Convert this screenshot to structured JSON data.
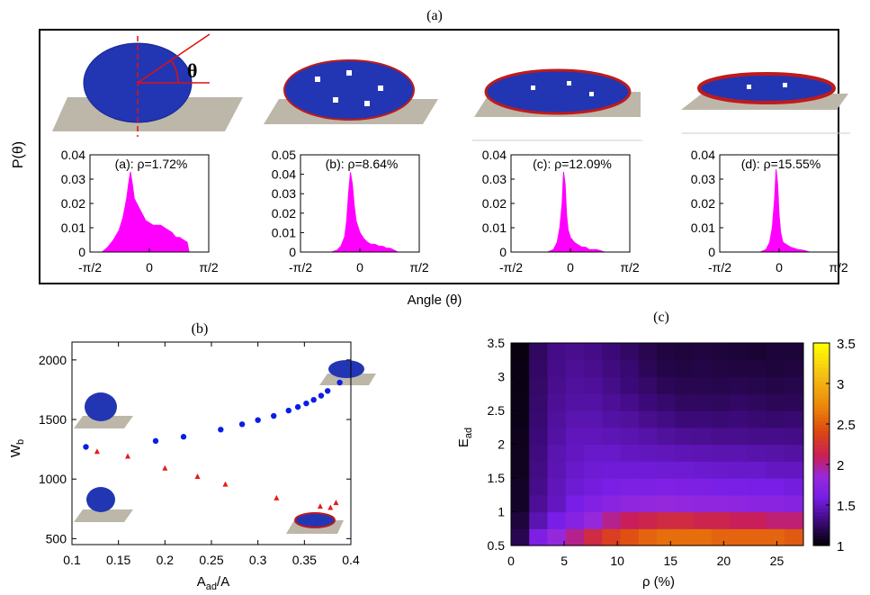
{
  "figure": {
    "panel_a_label": "(a)",
    "panel_b_label": "(b)",
    "panel_c_label": "(c)"
  },
  "panel_a": {
    "ylabel": "P(θ)",
    "xlabel": "Angle (θ)",
    "angle_symbol": "θ",
    "x_ticks": [
      "-π/2",
      "0",
      "π/2"
    ],
    "cell_colors": {
      "droplet": "#2236b4",
      "patch": "#d41f1f",
      "substrate": "#bdb7a9"
    }
  },
  "panel_b": {
    "ylabel": "W",
    "ylabel_sub": "b",
    "xlabel": "A",
    "xlabel_sub": "ad",
    "xlabel_tail": "/A"
  },
  "panel_c": {
    "ylabel": "E",
    "ylabel_sub": "ad",
    "xlabel": "ρ (%)"
  },
  "chart_data": [
    {
      "type": "area",
      "panel": "(a)",
      "label": "(a): ρ=1.72%",
      "xlim": [
        "-π/2",
        "π/2"
      ],
      "ylim": [
        0,
        0.04
      ],
      "y_ticks": [
        "0",
        "0.01",
        "0.02",
        "0.03",
        "0.04"
      ],
      "color": "#ff00ff",
      "series": [
        {
          "x": [
            -1.25,
            -1.1,
            -0.95,
            -0.8,
            -0.7,
            -0.6,
            -0.55,
            -0.5,
            -0.45,
            -0.4,
            -0.3,
            -0.2,
            -0.1,
            0,
            0.1,
            0.2,
            0.3,
            0.4,
            0.5,
            0.6,
            0.7,
            0.8,
            0.9,
            1.0,
            1.05
          ],
          "y": [
            0,
            0.002,
            0.005,
            0.009,
            0.014,
            0.022,
            0.028,
            0.033,
            0.028,
            0.022,
            0.019,
            0.016,
            0.013,
            0.012,
            0.011,
            0.011,
            0.011,
            0.01,
            0.009,
            0.008,
            0.006,
            0.006,
            0.005,
            0.004,
            0
          ]
        }
      ]
    },
    {
      "type": "area",
      "panel": "(b)",
      "label": "(b): ρ=8.64%",
      "xlim": [
        "-π/2",
        "π/2"
      ],
      "ylim": [
        0,
        0.05
      ],
      "y_ticks": [
        "0",
        "0.01",
        "0.02",
        "0.03",
        "0.04",
        "0.05"
      ],
      "color": "#ff00ff",
      "series": [
        {
          "x": [
            -0.75,
            -0.6,
            -0.5,
            -0.4,
            -0.35,
            -0.3,
            -0.25,
            -0.2,
            -0.15,
            -0.1,
            0,
            0.1,
            0.2,
            0.3,
            0.4,
            0.5,
            0.6,
            0.7,
            0.8,
            0.9,
            1.0
          ],
          "y": [
            0,
            0.001,
            0.003,
            0.008,
            0.016,
            0.03,
            0.041,
            0.035,
            0.024,
            0.016,
            0.01,
            0.007,
            0.005,
            0.004,
            0.004,
            0.003,
            0.003,
            0.002,
            0.002,
            0.001,
            0
          ]
        }
      ]
    },
    {
      "type": "area",
      "panel": "(c)",
      "label": "(c): ρ=12.09%",
      "xlim": [
        "-π/2",
        "π/2"
      ],
      "ylim": [
        0,
        0.04
      ],
      "y_ticks": [
        "0",
        "0.01",
        "0.02",
        "0.03",
        "0.04"
      ],
      "color": "#ff00ff",
      "series": [
        {
          "x": [
            -0.6,
            -0.45,
            -0.35,
            -0.28,
            -0.22,
            -0.18,
            -0.14,
            -0.1,
            -0.06,
            0,
            0.1,
            0.2,
            0.3,
            0.4,
            0.5,
            0.6,
            0.7,
            0.8,
            0.9
          ],
          "y": [
            0,
            0.001,
            0.004,
            0.01,
            0.02,
            0.033,
            0.028,
            0.015,
            0.009,
            0.006,
            0.004,
            0.003,
            0.002,
            0.002,
            0.001,
            0.001,
            0.001,
            0.0005,
            0
          ]
        }
      ]
    },
    {
      "type": "area",
      "panel": "(d)",
      "label": "(d): ρ=15.55%",
      "xlim": [
        "-π/2",
        "π/2"
      ],
      "ylim": [
        0,
        0.04
      ],
      "y_ticks": [
        "0",
        "0.01",
        "0.02",
        "0.03",
        "0.04"
      ],
      "color": "#ff00ff",
      "series": [
        {
          "x": [
            -0.5,
            -0.35,
            -0.25,
            -0.18,
            -0.12,
            -0.08,
            -0.04,
            0,
            0.04,
            0.1,
            0.2,
            0.3,
            0.4,
            0.5,
            0.6,
            0.7,
            0.8
          ],
          "y": [
            0,
            0.001,
            0.004,
            0.01,
            0.022,
            0.034,
            0.028,
            0.015,
            0.008,
            0.004,
            0.003,
            0.002,
            0.0015,
            0.001,
            0.0008,
            0.0005,
            0
          ]
        }
      ]
    },
    {
      "type": "scatter",
      "panel": "(b)",
      "xlim": [
        0.1,
        0.4
      ],
      "ylim": [
        450,
        2150
      ],
      "x_ticks": [
        0.1,
        0.15,
        0.2,
        0.25,
        0.3,
        0.35,
        0.4
      ],
      "y_ticks": [
        500,
        1000,
        1500,
        2000
      ],
      "series": [
        {
          "marker": "circle",
          "color": "#0a1ee6",
          "x": [
            0.115,
            0.19,
            0.22,
            0.26,
            0.283,
            0.3,
            0.317,
            0.333,
            0.343,
            0.352,
            0.36,
            0.368,
            0.375,
            0.388
          ],
          "y": [
            1270,
            1320,
            1355,
            1415,
            1460,
            1495,
            1530,
            1575,
            1605,
            1635,
            1665,
            1700,
            1740,
            1810
          ]
        },
        {
          "marker": "triangle",
          "color": "#e61a1a",
          "x": [
            0.127,
            0.16,
            0.2,
            0.235,
            0.265,
            0.32,
            0.367,
            0.378,
            0.384
          ],
          "y": [
            1230,
            1190,
            1090,
            1020,
            955,
            840,
            770,
            760,
            800
          ]
        }
      ]
    },
    {
      "type": "heatmap",
      "panel": "(c)",
      "xlim": [
        0,
        27.5
      ],
      "ylim": [
        0.5,
        3.5
      ],
      "x_ticks": [
        0,
        5,
        10,
        15,
        20,
        25
      ],
      "y_ticks": [
        0.5,
        1,
        1.5,
        2,
        2.5,
        3,
        3.5
      ],
      "colorbar": {
        "min": 1,
        "max": 3.5,
        "ticks": [
          1,
          1.5,
          2,
          2.5,
          3,
          3.5
        ]
      },
      "x": [
        0.86,
        2.57,
        4.29,
        6.0,
        7.71,
        9.43,
        11.14,
        12.86,
        14.57,
        16.29,
        18.0,
        19.71,
        21.43,
        23.14,
        24.86,
        26.57
      ],
      "y": [
        0.625,
        0.875,
        1.125,
        1.375,
        1.625,
        1.875,
        2.125,
        2.375,
        2.625,
        2.875,
        3.125,
        3.375
      ],
      "z": [
        [
          1.2,
          1.65,
          1.85,
          2.0,
          2.2,
          2.35,
          2.45,
          2.55,
          2.6,
          2.6,
          2.6,
          2.55,
          2.55,
          2.55,
          2.55,
          2.5
        ],
        [
          1.15,
          1.45,
          1.6,
          1.72,
          1.85,
          2.0,
          2.1,
          2.15,
          2.2,
          2.2,
          2.15,
          2.15,
          2.1,
          2.1,
          2.05,
          2.05
        ],
        [
          1.1,
          1.38,
          1.5,
          1.6,
          1.68,
          1.75,
          1.8,
          1.82,
          1.85,
          1.82,
          1.8,
          1.8,
          1.78,
          1.75,
          1.75,
          1.72
        ],
        [
          1.1,
          1.35,
          1.48,
          1.55,
          1.58,
          1.62,
          1.64,
          1.65,
          1.66,
          1.65,
          1.64,
          1.62,
          1.62,
          1.6,
          1.6,
          1.58
        ],
        [
          1.08,
          1.33,
          1.46,
          1.52,
          1.55,
          1.56,
          1.56,
          1.56,
          1.55,
          1.55,
          1.54,
          1.53,
          1.52,
          1.52,
          1.5,
          1.5
        ],
        [
          1.08,
          1.32,
          1.45,
          1.5,
          1.52,
          1.52,
          1.5,
          1.49,
          1.48,
          1.47,
          1.46,
          1.45,
          1.45,
          1.44,
          1.43,
          1.42
        ],
        [
          1.07,
          1.3,
          1.42,
          1.48,
          1.48,
          1.47,
          1.45,
          1.43,
          1.4,
          1.38,
          1.37,
          1.36,
          1.36,
          1.35,
          1.35,
          1.34
        ],
        [
          1.06,
          1.28,
          1.4,
          1.45,
          1.45,
          1.42,
          1.4,
          1.36,
          1.33,
          1.3,
          1.3,
          1.29,
          1.3,
          1.28,
          1.27,
          1.28
        ],
        [
          1.06,
          1.27,
          1.38,
          1.42,
          1.42,
          1.38,
          1.35,
          1.3,
          1.27,
          1.24,
          1.24,
          1.23,
          1.25,
          1.23,
          1.22,
          1.22
        ],
        [
          1.05,
          1.26,
          1.36,
          1.4,
          1.39,
          1.35,
          1.3,
          1.26,
          1.22,
          1.2,
          1.2,
          1.19,
          1.2,
          1.19,
          1.18,
          1.19
        ],
        [
          1.05,
          1.25,
          1.35,
          1.38,
          1.36,
          1.32,
          1.28,
          1.22,
          1.18,
          1.17,
          1.18,
          1.17,
          1.16,
          1.16,
          1.15,
          1.16
        ],
        [
          1.04,
          1.24,
          1.34,
          1.36,
          1.34,
          1.3,
          1.25,
          1.2,
          1.16,
          1.15,
          1.16,
          1.15,
          1.14,
          1.13,
          1.14,
          1.14
        ]
      ]
    }
  ]
}
